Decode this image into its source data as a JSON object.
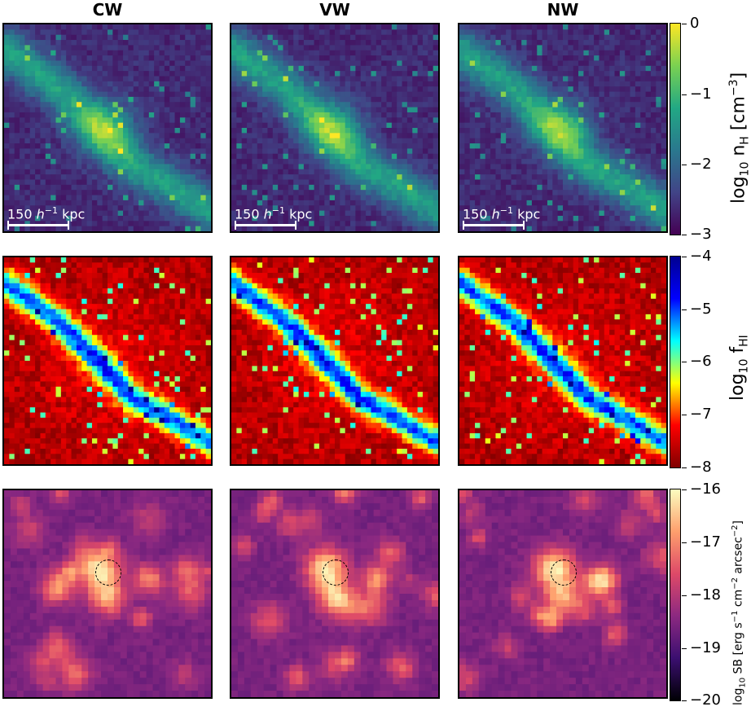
{
  "columns": [
    "CW",
    "VW",
    "NW"
  ],
  "rows": [
    {
      "name": "hydrogen-density",
      "colorbar_label": "log10 nH [cm−3]",
      "label_main": "log",
      "label_sub": "10",
      "label_rest": " n",
      "label_rest_sub": "H",
      "label_unit": " [cm",
      "label_unit_sup": "−3",
      "label_end": "]",
      "ticks": [
        "0",
        "−1",
        "−2",
        "−3"
      ],
      "tick_values": [
        0,
        -1,
        -2,
        -3
      ],
      "range": [
        -3,
        0
      ]
    },
    {
      "name": "neutral-fraction",
      "colorbar_label": "log10 fHI",
      "label_main": "log",
      "label_sub": "10",
      "label_rest": " f",
      "label_rest_sub": "HI",
      "ticks": [
        "−4",
        "−5",
        "−6",
        "−7",
        "−8"
      ],
      "tick_values": [
        -4,
        -5,
        -6,
        -7,
        -8
      ],
      "range": [
        -8,
        -4
      ]
    },
    {
      "name": "surface-brightness",
      "colorbar_label": "log10 SB [erg s−1 cm−2 arcsec−2]",
      "label_main": "log",
      "label_sub": "10",
      "label_rest": " SB [erg s",
      "label_sup1": "−1",
      "label_mid": " cm",
      "label_sup2": "−2",
      "label_mid2": " arcsec",
      "label_sup3": "−2",
      "label_end": "]",
      "ticks": [
        "−16",
        "−17",
        "−18",
        "−19",
        "−20"
      ],
      "tick_values": [
        -16,
        -17,
        -18,
        -19,
        -20
      ],
      "range": [
        -20,
        -16
      ]
    }
  ],
  "scalebar": {
    "value": "150",
    "unit": "h",
    "exp": "−1",
    "suffix": " kpc"
  },
  "colors": {
    "viridis": [
      "#440154",
      "#414487",
      "#2a788e",
      "#22a884",
      "#7ad151",
      "#fde725"
    ],
    "jet": [
      "#800000",
      "#ff0000",
      "#ffff00",
      "#00ffff",
      "#0000ff",
      "#00008f"
    ],
    "magma": [
      "#000004",
      "#3b0f70",
      "#8c2981",
      "#de4968",
      "#fe9f6d",
      "#fcfdbf"
    ]
  },
  "chart_data": [
    {
      "type": "heatmap",
      "title": "CW",
      "row": "log10 nH [cm−3]",
      "range": [
        -3,
        0
      ]
    },
    {
      "type": "heatmap",
      "title": "VW",
      "row": "log10 nH [cm−3]",
      "range": [
        -3,
        0
      ]
    },
    {
      "type": "heatmap",
      "title": "NW",
      "row": "log10 nH [cm−3]",
      "range": [
        -3,
        0
      ]
    },
    {
      "type": "heatmap",
      "title": "CW",
      "row": "log10 fHI",
      "range": [
        -8,
        -4
      ]
    },
    {
      "type": "heatmap",
      "title": "VW",
      "row": "log10 fHI",
      "range": [
        -8,
        -4
      ]
    },
    {
      "type": "heatmap",
      "title": "NW",
      "row": "log10 fHI",
      "range": [
        -8,
        -4
      ]
    },
    {
      "type": "heatmap",
      "title": "CW",
      "row": "log10 SB [erg s−1 cm−2 arcsec−2]",
      "range": [
        -20,
        -16
      ]
    },
    {
      "type": "heatmap",
      "title": "VW",
      "row": "log10 SB [erg s−1 cm−2 arcsec−2]",
      "range": [
        -20,
        -16
      ]
    },
    {
      "type": "heatmap",
      "title": "NW",
      "row": "log10 SB [erg s−1 cm−2 arcsec−2]",
      "range": [
        -20,
        -16
      ]
    }
  ]
}
